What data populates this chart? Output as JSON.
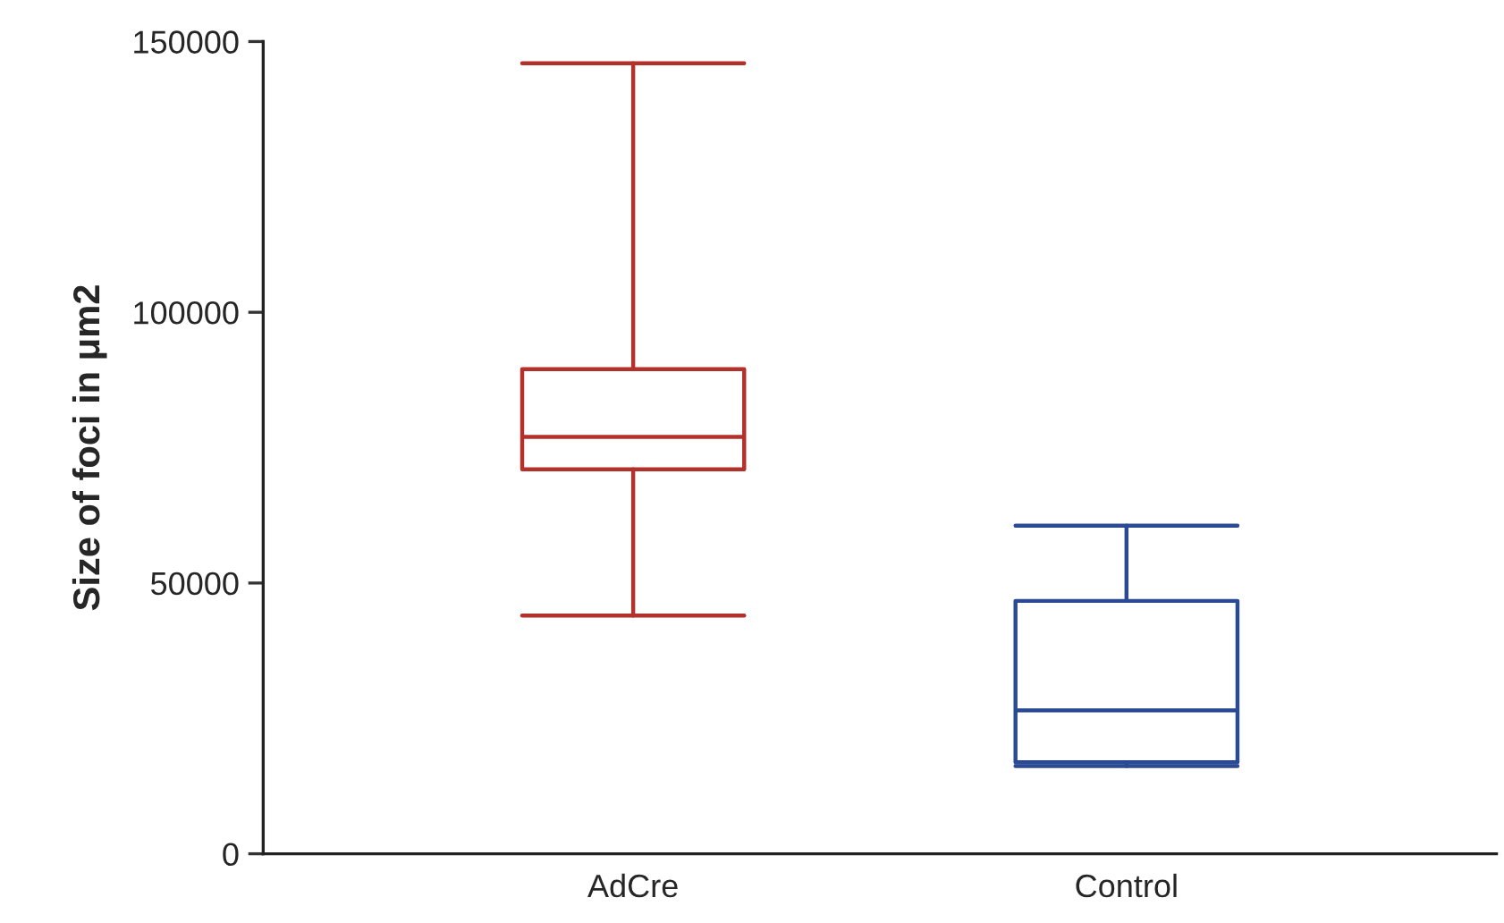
{
  "chart_data": {
    "type": "box",
    "ylabel": "Size of foci in μm2",
    "categories": [
      "AdCre",
      "Control"
    ],
    "boxes": [
      {
        "low": 44000,
        "q1": 71000,
        "median": 77000,
        "q3": 89500,
        "high": 146000
      },
      {
        "low": 16200,
        "q1": 16900,
        "median": 26500,
        "q3": 46700,
        "high": 60600
      }
    ],
    "colors": [
      "#b3312a",
      "#2b4a94"
    ],
    "ylim": [
      0,
      150000
    ],
    "yticks": [
      0,
      50000,
      100000,
      150000
    ],
    "grid": false
  }
}
